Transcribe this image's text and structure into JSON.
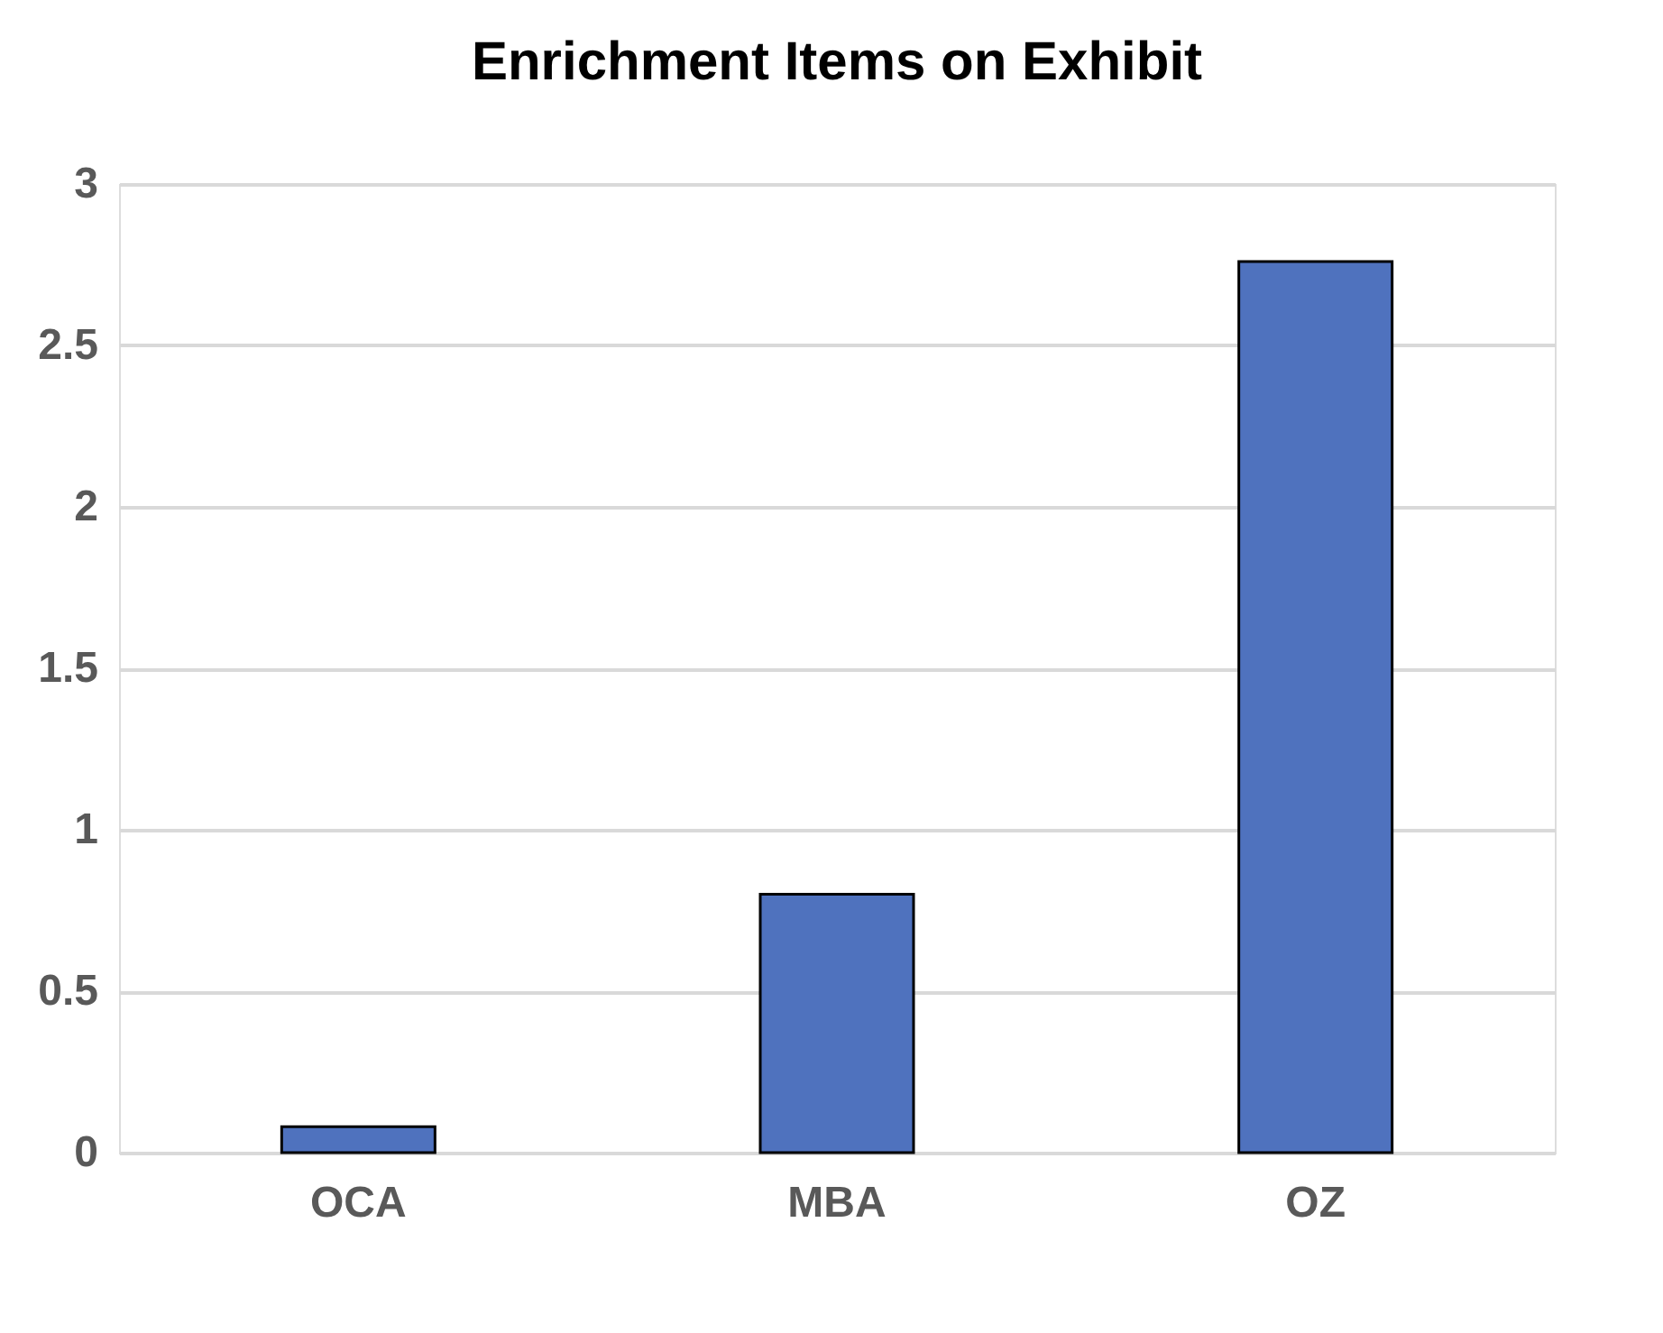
{
  "chart_data": {
    "type": "bar",
    "title": "Enrichment Items on Exhibit",
    "categories": [
      "OCA",
      "MBA",
      "OZ"
    ],
    "values": [
      0.08,
      0.8,
      2.76
    ],
    "color": "#4f72be",
    "ylim": [
      0,
      3
    ],
    "yticks": [
      0,
      0.5,
      1,
      1.5,
      2,
      2.5,
      3
    ],
    "grid": "y"
  }
}
